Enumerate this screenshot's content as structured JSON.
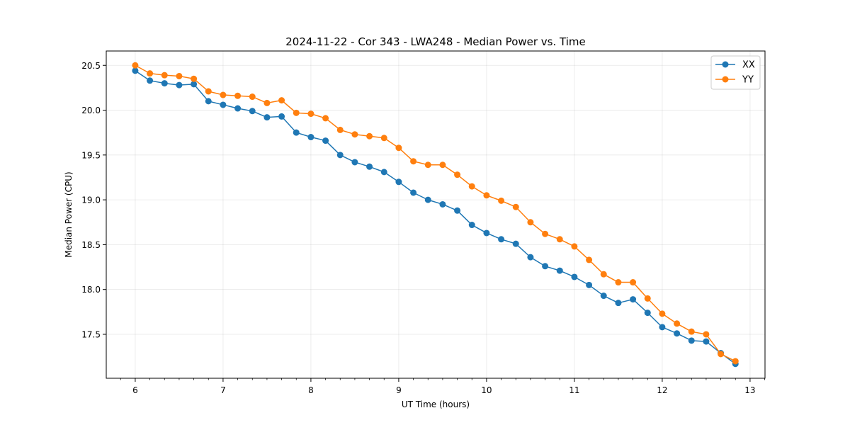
{
  "chart_data": {
    "type": "line",
    "title": "2024-11-22 - Cor 343 - LWA248 - Median Power vs. Time",
    "xlabel": "UT Time (hours)",
    "ylabel": "Median Power (CPU)",
    "xlim": [
      5.67,
      13.17
    ],
    "ylim": [
      17.01,
      20.66
    ],
    "xticks": [
      6,
      7,
      8,
      9,
      10,
      11,
      12,
      13
    ],
    "xtick_labels": [
      "6",
      "7",
      "8",
      "9",
      "10",
      "11",
      "12",
      "13"
    ],
    "yticks": [
      17.5,
      18.0,
      18.5,
      19.0,
      19.5,
      20.0,
      20.5
    ],
    "ytick_labels": [
      "17.5",
      "18.0",
      "18.5",
      "19.0",
      "19.5",
      "20.0",
      "20.5"
    ],
    "grid": true,
    "legend_position": "top-right",
    "x": [
      6.0,
      6.1667,
      6.3333,
      6.5,
      6.6667,
      6.8333,
      7.0,
      7.1667,
      7.3333,
      7.5,
      7.6667,
      7.8333,
      8.0,
      8.1667,
      8.3333,
      8.5,
      8.6667,
      8.8333,
      9.0,
      9.1667,
      9.3333,
      9.5,
      9.6667,
      9.8333,
      10.0,
      10.1667,
      10.3333,
      10.5,
      10.6667,
      10.8333,
      11.0,
      11.1667,
      11.3333,
      11.5,
      11.6667,
      11.8333,
      12.0,
      12.1667,
      12.3333,
      12.5,
      12.6667,
      12.8333
    ],
    "series": [
      {
        "name": "XX",
        "color": "#1f77b4",
        "values": [
          20.44,
          20.33,
          20.3,
          20.28,
          20.29,
          20.1,
          20.06,
          20.02,
          19.99,
          19.92,
          19.93,
          19.75,
          19.7,
          19.66,
          19.5,
          19.42,
          19.37,
          19.31,
          19.2,
          19.08,
          19.0,
          18.95,
          18.88,
          18.72,
          18.63,
          18.56,
          18.51,
          18.36,
          18.26,
          18.21,
          18.14,
          18.05,
          17.93,
          17.85,
          17.89,
          17.74,
          17.58,
          17.51,
          17.43,
          17.42,
          17.29,
          17.17
        ]
      },
      {
        "name": "YY",
        "color": "#ff7f0e",
        "values": [
          20.5,
          20.41,
          20.39,
          20.38,
          20.35,
          20.21,
          20.17,
          20.16,
          20.15,
          20.08,
          20.11,
          19.97,
          19.96,
          19.91,
          19.78,
          19.73,
          19.71,
          19.69,
          19.58,
          19.43,
          19.39,
          19.39,
          19.28,
          19.15,
          19.05,
          18.99,
          18.92,
          18.75,
          18.62,
          18.56,
          18.48,
          18.33,
          18.17,
          18.08,
          18.08,
          17.9,
          17.73,
          17.62,
          17.53,
          17.5,
          17.28,
          17.2
        ]
      }
    ]
  }
}
